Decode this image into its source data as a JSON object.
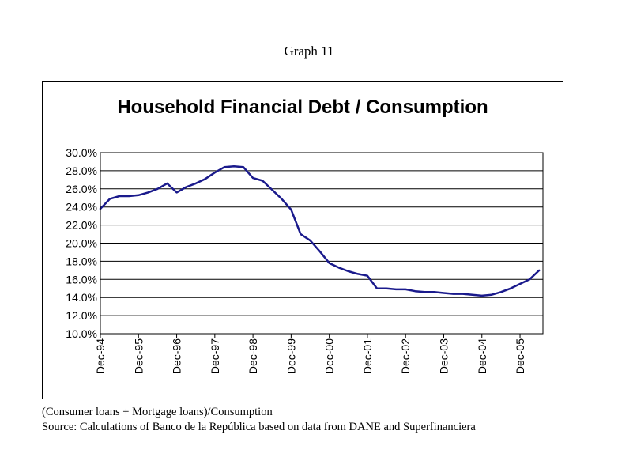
{
  "graph_label": "Graph 11",
  "notes": {
    "line1": "(Consumer loans + Mortgage loans)/Consumption",
    "line2": "Source: Calculations of Banco de la República based on data from DANE and Superfinanciera"
  },
  "chart_data": {
    "type": "line",
    "title": "Household Financial Debt / Consumption",
    "xlabel": "",
    "ylabel": "",
    "ylim": [
      10,
      30
    ],
    "y_ticks": [
      10,
      12,
      14,
      16,
      18,
      20,
      22,
      24,
      26,
      28,
      30
    ],
    "y_tick_labels": [
      "10.0%",
      "12.0%",
      "14.0%",
      "16.0%",
      "18.0%",
      "20.0%",
      "22.0%",
      "24.0%",
      "26.0%",
      "28.0%",
      "30.0%"
    ],
    "x_tick_labels": [
      "Dec-94",
      "Dec-95",
      "Dec-96",
      "Dec-97",
      "Dec-98",
      "Dec-99",
      "Dec-00",
      "Dec-01",
      "Dec-02",
      "Dec-03",
      "Dec-04",
      "Dec-05"
    ],
    "x_ticks_quarter_index": [
      0,
      4,
      8,
      12,
      16,
      20,
      24,
      28,
      32,
      36,
      40,
      44
    ],
    "xlim_quarters": [
      0,
      46.4
    ],
    "grid": true,
    "legend": "none",
    "series": [
      {
        "name": "Household Financial Debt / Consumption",
        "color": "#1a1a8c",
        "quarter_index": [
          0,
          1,
          2,
          3,
          4,
          5,
          6,
          7,
          8,
          9,
          10,
          11,
          12,
          13,
          14,
          15,
          16,
          17,
          18,
          19,
          20,
          21,
          22,
          23,
          24,
          25,
          26,
          27,
          28,
          29,
          30,
          31,
          32,
          33,
          34,
          35,
          36,
          37,
          38,
          39,
          40,
          41,
          42,
          43,
          44,
          45,
          46
        ],
        "values": [
          23.8,
          24.9,
          25.2,
          25.2,
          25.3,
          25.6,
          26.0,
          26.6,
          25.6,
          26.2,
          26.6,
          27.1,
          27.8,
          28.4,
          28.5,
          28.4,
          27.2,
          26.9,
          25.9,
          24.9,
          23.7,
          21.0,
          20.3,
          19.1,
          17.8,
          17.3,
          16.9,
          16.6,
          16.4,
          15.0,
          15.0,
          14.9,
          14.9,
          14.7,
          14.6,
          14.6,
          14.5,
          14.4,
          14.4,
          14.3,
          14.2,
          14.3,
          14.6,
          15.0,
          15.5,
          16.0,
          17.0
        ]
      }
    ]
  }
}
